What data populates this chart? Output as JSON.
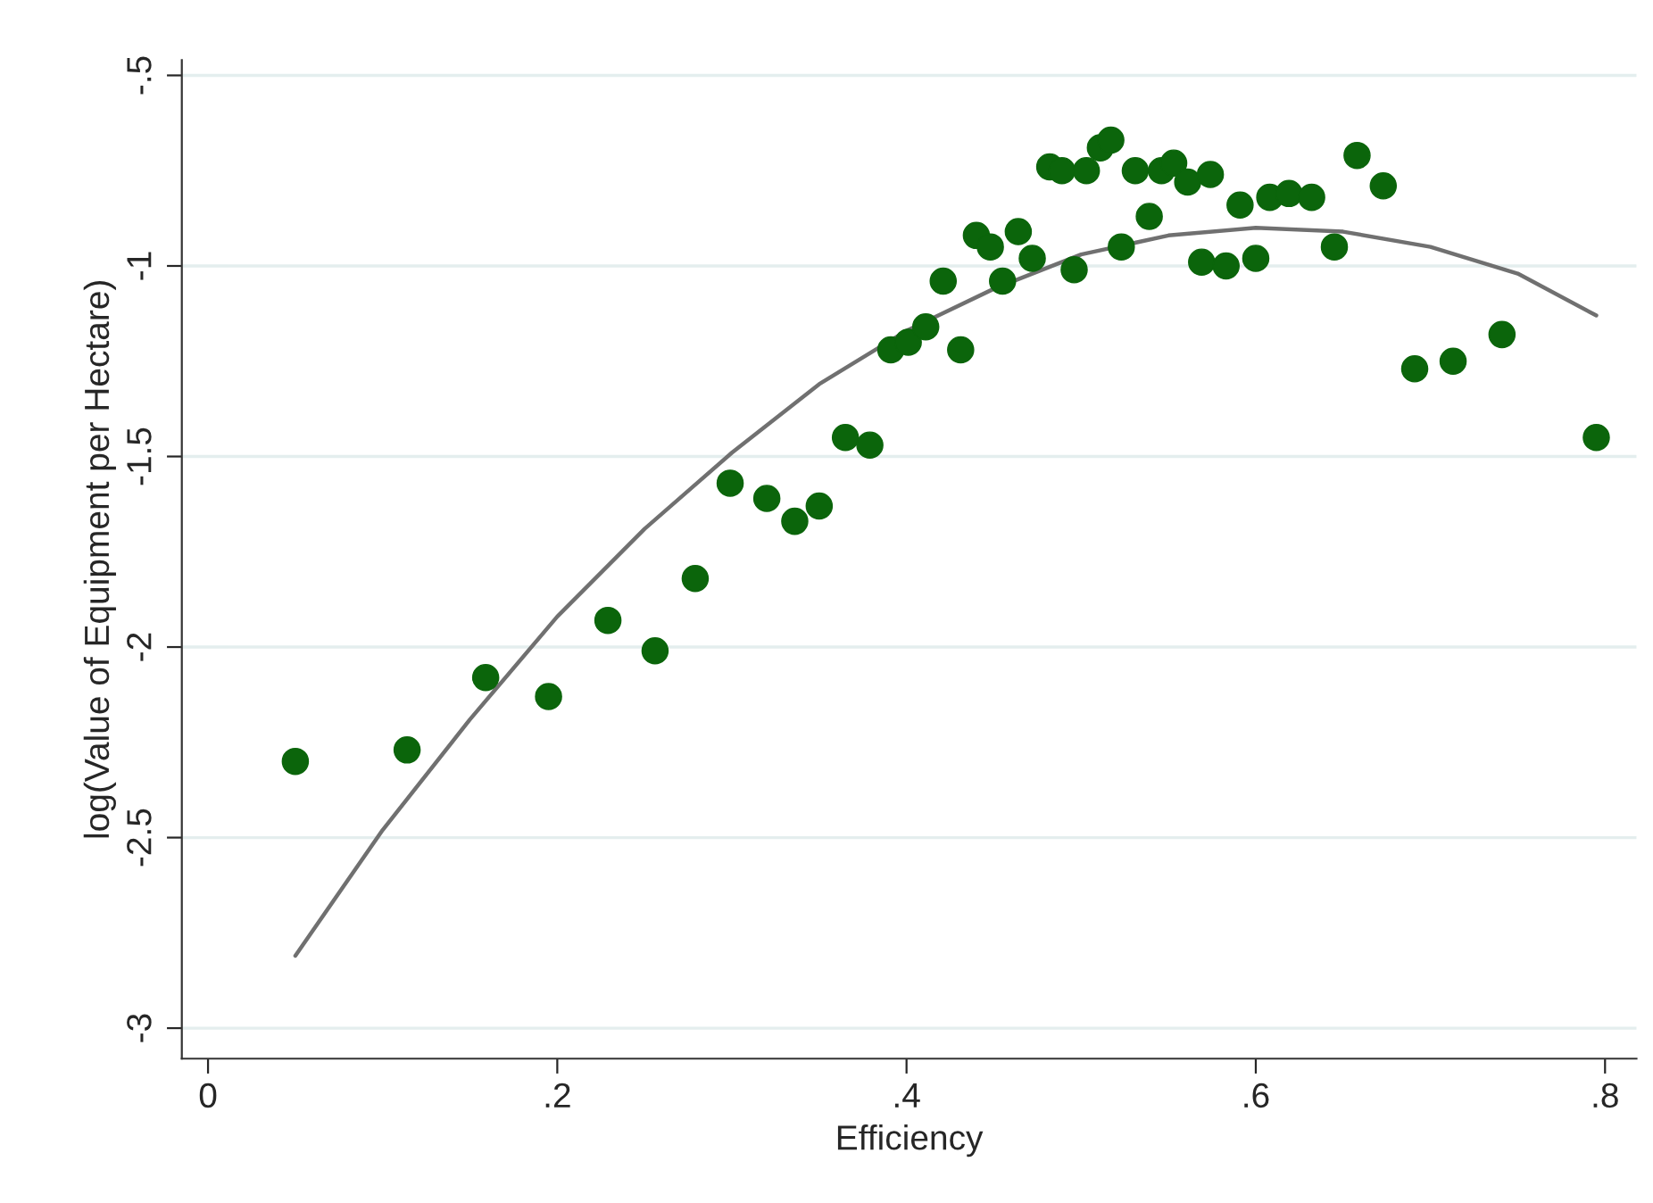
{
  "chart_data": {
    "type": "scatter",
    "xlabel": "Efficiency",
    "ylabel": "log(Value of Equipment per Hectare)",
    "xlim": [
      -0.015,
      0.818
    ],
    "ylim": [
      -3.08,
      -0.46
    ],
    "xticks": [
      0,
      {
        "value": 0.2,
        "label": ".2"
      },
      {
        "value": 0.4,
        "label": ".4"
      },
      {
        "value": 0.6,
        "label": ".6"
      },
      {
        "value": 0.8,
        "label": ".8"
      }
    ],
    "yticks": [
      {
        "value": -3,
        "label": "-3"
      },
      {
        "value": -2.5,
        "label": "-2.5"
      },
      {
        "value": -2,
        "label": "-2"
      },
      {
        "value": -1.5,
        "label": "-1.5"
      },
      {
        "value": -1,
        "label": "-1"
      },
      {
        "value": -0.5,
        "label": "-.5"
      }
    ],
    "grid": "y",
    "legend": false,
    "series": [
      {
        "marker": "circle",
        "color": "#0b650b",
        "x": [
          0.05,
          0.114,
          0.159,
          0.195,
          0.229,
          0.256,
          0.279,
          0.299,
          0.32,
          0.336,
          0.35,
          0.365,
          0.379,
          0.391,
          0.401,
          0.411,
          0.421,
          0.431,
          0.44,
          0.448,
          0.455,
          0.464,
          0.472,
          0.482,
          0.489,
          0.496,
          0.503,
          0.511,
          0.517,
          0.523,
          0.531,
          0.539,
          0.546,
          0.553,
          0.561,
          0.569,
          0.574,
          0.583,
          0.591,
          0.6,
          0.608,
          0.619,
          0.632,
          0.645,
          0.658,
          0.673,
          0.691,
          0.713,
          0.741,
          0.795
        ],
        "values": [
          -2.3,
          -2.27,
          -2.08,
          -2.13,
          -1.93,
          -2.01,
          -1.82,
          -1.57,
          -1.61,
          -1.67,
          -1.63,
          -1.45,
          -1.47,
          -1.22,
          -1.2,
          -1.16,
          -1.04,
          -1.22,
          -0.92,
          -0.95,
          -1.04,
          -0.91,
          -0.98,
          -0.74,
          -0.75,
          -1.01,
          -0.75,
          -0.69,
          -0.67,
          -0.95,
          -0.75,
          -0.87,
          -0.75,
          -0.73,
          -0.78,
          -0.99,
          -0.76,
          -1.0,
          -0.84,
          -0.98,
          -0.82,
          -0.81,
          -0.82,
          -0.95,
          -0.71,
          -0.79,
          -1.27,
          -1.25,
          -1.18,
          -1.45
        ]
      },
      {
        "type": "line",
        "color": "#707070",
        "x": [
          0.05,
          0.1,
          0.15,
          0.2,
          0.25,
          0.3,
          0.35,
          0.4,
          0.45,
          0.5,
          0.55,
          0.6,
          0.65,
          0.7,
          0.75,
          0.795
        ],
        "values": [
          -2.81,
          -2.48,
          -2.19,
          -1.92,
          -1.69,
          -1.49,
          -1.31,
          -1.17,
          -1.06,
          -0.97,
          -0.92,
          -0.9,
          -0.91,
          -0.95,
          -1.02,
          -1.13
        ]
      }
    ]
  }
}
